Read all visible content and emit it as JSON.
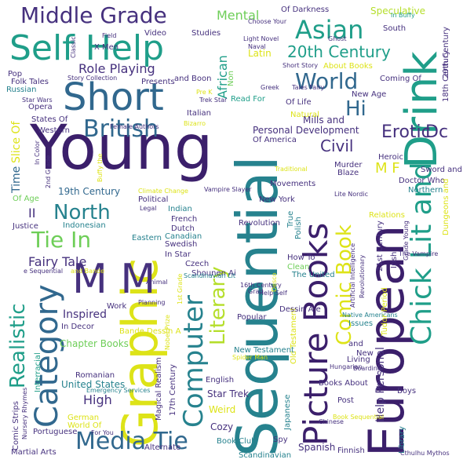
{
  "palette": {
    "purple": "#46317e",
    "deep_purple": "#3b1f6b",
    "blue": "#31688e",
    "teal": "#26828e",
    "green": "#1f9e89",
    "light_green": "#6ece58",
    "yellow_green": "#b5de2b",
    "yellow": "#dde318",
    "bright_yellow": "#fde725"
  },
  "words": [
    {
      "text": "Young",
      "c": "deep_purple"
    },
    {
      "text": "Sequential",
      "c": "teal"
    },
    {
      "text": "European",
      "c": "deep_purple"
    },
    {
      "text": "Graphic",
      "c": "yellow"
    },
    {
      "text": "Self Help",
      "c": "green"
    },
    {
      "text": "Short",
      "c": "blue"
    },
    {
      "text": "Drink",
      "c": "green"
    },
    {
      "text": "Chick Lit and",
      "c": "green"
    },
    {
      "text": "Picture Books",
      "c": "deep_purple"
    },
    {
      "text": "M M",
      "c": "purple"
    },
    {
      "text": "Category",
      "c": "blue"
    },
    {
      "text": "Computer",
      "c": "teal"
    },
    {
      "text": "Media Tie",
      "c": "blue"
    },
    {
      "text": "British",
      "c": "blue"
    },
    {
      "text": "Middle Grade",
      "c": "purple"
    },
    {
      "text": "Asian",
      "c": "green"
    },
    {
      "text": "World",
      "c": "blue"
    },
    {
      "text": "20th Century",
      "c": "green"
    },
    {
      "text": "Tie In",
      "c": "light_green"
    },
    {
      "text": "North",
      "c": "teal"
    },
    {
      "text": "Literary",
      "c": "yellow_green"
    },
    {
      "text": "Comic Book",
      "c": "yellow"
    },
    {
      "text": "Realistic",
      "c": "green"
    },
    {
      "text": "Role Playing",
      "c": "purple"
    },
    {
      "text": "Fairy Tale",
      "c": "purple"
    },
    {
      "text": "Hi",
      "c": "blue"
    },
    {
      "text": "Erotic",
      "c": "purple"
    },
    {
      "text": "Dc",
      "c": "purple"
    },
    {
      "text": "Civil",
      "c": "purple"
    },
    {
      "text": "Mental",
      "c": "light_green"
    },
    {
      "text": "Speculative",
      "c": "yellow_green"
    },
    {
      "text": "African",
      "c": "green"
    },
    {
      "text": "Latin",
      "c": "yellow"
    },
    {
      "text": "M F",
      "c": "yellow"
    },
    {
      "text": "Help Personal",
      "c": "purple"
    },
    {
      "text": "Personal Development",
      "c": "purple"
    },
    {
      "text": "Mills and",
      "c": "purple"
    },
    {
      "text": "Of America",
      "c": "purple"
    },
    {
      "text": "19th Century",
      "c": "blue"
    },
    {
      "text": "Time",
      "c": "blue"
    },
    {
      "text": "II",
      "c": "purple"
    },
    {
      "text": "Of Age",
      "c": "light_green"
    },
    {
      "text": "Justice",
      "c": "purple"
    },
    {
      "text": "Indonesian",
      "c": "teal"
    },
    {
      "text": "Eastern",
      "c": "teal"
    },
    {
      "text": "Dutch",
      "c": "purple"
    },
    {
      "text": "French",
      "c": "purple"
    },
    {
      "text": "Canadian",
      "c": "teal"
    },
    {
      "text": "Swedish",
      "c": "purple"
    },
    {
      "text": "In Star",
      "c": "purple"
    },
    {
      "text": "Czech",
      "c": "purple"
    },
    {
      "text": "Shounen Ai",
      "c": "purple"
    },
    {
      "text": "Revolution",
      "c": "purple"
    },
    {
      "text": "How To",
      "c": "purple"
    },
    {
      "text": "Clean",
      "c": "light_green"
    },
    {
      "text": "The United",
      "c": "teal"
    },
    {
      "text": "New York",
      "c": "purple"
    },
    {
      "text": "True",
      "c": "teal"
    },
    {
      "text": "Polish",
      "c": "teal"
    },
    {
      "text": "Heroic",
      "c": "purple"
    },
    {
      "text": "Sword and",
      "c": "purple"
    },
    {
      "text": "Doctor Who",
      "c": "purple"
    },
    {
      "text": "Northern",
      "c": "teal"
    },
    {
      "text": "Relations",
      "c": "yellow"
    },
    {
      "text": "Murder",
      "c": "purple"
    },
    {
      "text": "Blaze",
      "c": "purple"
    },
    {
      "text": "Movements",
      "c": "purple"
    },
    {
      "text": "Natural",
      "c": "yellow"
    },
    {
      "text": "Of Life",
      "c": "purple"
    },
    {
      "text": "Read For",
      "c": "green"
    },
    {
      "text": "Trek Star",
      "c": "purple"
    },
    {
      "text": "Italian",
      "c": "purple"
    },
    {
      "text": "Opera",
      "c": "purple"
    },
    {
      "text": "States Of",
      "c": "purple"
    },
    {
      "text": "Western",
      "c": "purple"
    },
    {
      "text": "Russian",
      "c": "teal"
    },
    {
      "text": "Folk Tales",
      "c": "purple"
    },
    {
      "text": "Pop",
      "c": "purple"
    },
    {
      "text": "Video",
      "c": "purple"
    },
    {
      "text": "Studies",
      "c": "purple"
    },
    {
      "text": "Presents",
      "c": "purple"
    },
    {
      "text": "and Boon",
      "c": "purple"
    },
    {
      "text": "X Men",
      "c": "purple"
    },
    {
      "text": "Of Darkness",
      "c": "purple"
    },
    {
      "text": "Choose Your",
      "c": "purple"
    },
    {
      "text": "Light Novel",
      "c": "purple"
    },
    {
      "text": "Naval",
      "c": "purple"
    },
    {
      "text": "Ghost",
      "c": "purple"
    },
    {
      "text": "In Buffy",
      "c": "green"
    },
    {
      "text": "South",
      "c": "purple"
    },
    {
      "text": "20th Century",
      "c": "purple"
    },
    {
      "text": "18th Century",
      "c": "purple"
    },
    {
      "text": "Dungeons and",
      "c": "yellow"
    },
    {
      "text": "About Books",
      "c": "yellow"
    },
    {
      "text": "Coming Of",
      "c": "purple"
    },
    {
      "text": "New Age",
      "c": "purple"
    },
    {
      "text": "Short Story",
      "c": "purple"
    },
    {
      "text": "Tales Fairy",
      "c": "purple"
    },
    {
      "text": "Greek",
      "c": "purple"
    },
    {
      "text": "Non",
      "c": "light_green"
    },
    {
      "text": "Bizarro",
      "c": "yellow"
    },
    {
      "text": "Star Wars",
      "c": "purple"
    },
    {
      "text": "Story Collection",
      "c": "purple"
    },
    {
      "text": "Classic",
      "c": "purple"
    },
    {
      "text": "Field",
      "c": "purple"
    },
    {
      "text": "Female Authors",
      "c": "purple"
    },
    {
      "text": "Slice Of",
      "c": "yellow"
    },
    {
      "text": "In Color",
      "c": "purple"
    },
    {
      "text": "2nd Grade",
      "c": "purple"
    },
    {
      "text": "Buffy the",
      "c": "yellow"
    },
    {
      "text": "Climate Change",
      "c": "yellow"
    },
    {
      "text": "Traditional",
      "c": "yellow"
    },
    {
      "text": "Vampire Slayer",
      "c": "purple"
    },
    {
      "text": "Political",
      "c": "purple"
    },
    {
      "text": "Legal",
      "c": "purple"
    },
    {
      "text": "Indian",
      "c": "teal"
    },
    {
      "text": "Lite Nordic",
      "c": "purple"
    },
    {
      "text": "Grade Young",
      "c": "purple"
    },
    {
      "text": "The Vampire",
      "c": "purple"
    },
    {
      "text": "Irish",
      "c": "purple"
    },
    {
      "text": "21st Century",
      "c": "purple"
    },
    {
      "text": "Artificial Intelligence",
      "c": "purple"
    },
    {
      "text": "Revolutionary",
      "c": "purple"
    },
    {
      "text": "Native Americans",
      "c": "teal"
    },
    {
      "text": "Issues",
      "c": "teal"
    },
    {
      "text": "Tudor Period",
      "c": "yellow"
    },
    {
      "text": "and",
      "c": "purple"
    },
    {
      "text": "New",
      "c": "purple"
    },
    {
      "text": "Living",
      "c": "purple"
    },
    {
      "text": "Boarding",
      "c": "purple"
    },
    {
      "text": "Hungarian",
      "c": "purple"
    },
    {
      "text": "Old Testament",
      "c": "yellow"
    },
    {
      "text": "New Testament",
      "c": "teal"
    },
    {
      "text": "Dessin A e",
      "c": "purple"
    },
    {
      "text": "Popular",
      "c": "purple"
    },
    {
      "text": "16th Century",
      "c": "purple"
    },
    {
      "text": "Grad",
      "c": "purple"
    },
    {
      "text": "Desco",
      "c": "yellow"
    },
    {
      "text": "Inspired",
      "c": "purple"
    },
    {
      "text": "Work",
      "c": "purple"
    },
    {
      "text": "In Decor",
      "c": "purple"
    },
    {
      "text": "Bande Dessin A",
      "c": "yellow"
    },
    {
      "text": "Chapter Books",
      "c": "light_green"
    },
    {
      "text": "Romanian",
      "c": "purple"
    },
    {
      "text": "United States",
      "c": "teal"
    },
    {
      "text": "Emergency Services",
      "c": "teal"
    },
    {
      "text": "Comic Strips",
      "c": "purple"
    },
    {
      "text": "Nursery Rhymes",
      "c": "purple"
    },
    {
      "text": "Interracial",
      "c": "green"
    },
    {
      "text": "High",
      "c": "purple"
    },
    {
      "text": "German",
      "c": "yellow"
    },
    {
      "text": "World Of",
      "c": "yellow"
    },
    {
      "text": "Portuguese",
      "c": "purple"
    },
    {
      "text": "For You",
      "c": "purple"
    },
    {
      "text": "Alternate",
      "c": "purple"
    },
    {
      "text": "Magical Realism",
      "c": "purple"
    },
    {
      "text": "17th Century",
      "c": "purple"
    },
    {
      "text": "Nobel Prize",
      "c": "yellow"
    },
    {
      "text": "1st Grade",
      "c": "yellow"
    },
    {
      "text": "Scandinavian Lit",
      "c": "teal"
    },
    {
      "text": "Animal",
      "c": "purple"
    },
    {
      "text": "Planning",
      "c": "purple"
    },
    {
      "text": "English",
      "c": "purple"
    },
    {
      "text": "Star Trek",
      "c": "purple"
    },
    {
      "text": "Weird",
      "c": "yellow"
    },
    {
      "text": "Cozy",
      "c": "purple"
    },
    {
      "text": "Book Club",
      "c": "teal"
    },
    {
      "text": "Spy",
      "c": "purple"
    },
    {
      "text": "Japanese",
      "c": "teal"
    },
    {
      "text": "Spider Man",
      "c": "yellow"
    },
    {
      "text": "Post",
      "c": "purple"
    },
    {
      "text": "Books About",
      "c": "purple"
    },
    {
      "text": "Chinese",
      "c": "purple"
    },
    {
      "text": "Boys",
      "c": "purple"
    },
    {
      "text": "Book Sequential",
      "c": "yellow"
    },
    {
      "text": "Library",
      "c": "teal"
    },
    {
      "text": "Cthulhu Mythos",
      "c": "purple"
    },
    {
      "text": "Spanish",
      "c": "purple"
    },
    {
      "text": "Finnish",
      "c": "purple"
    },
    {
      "text": "Scandinavian",
      "c": "teal"
    },
    {
      "text": "Martial Arts",
      "c": "purple"
    },
    {
      "text": "Help Self",
      "c": "purple"
    },
    {
      "text": "Pre K",
      "c": "yellow"
    },
    {
      "text": "e Sequential",
      "c": "purple"
    },
    {
      "text": "and Bande",
      "c": "yellow"
    }
  ]
}
